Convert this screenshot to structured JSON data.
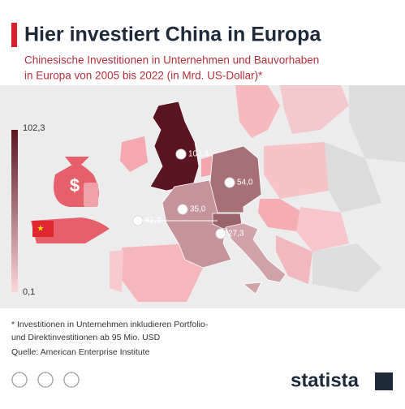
{
  "header": {
    "title": "Hier investiert China in Europa",
    "subtitle": [
      "Chinesische Investitionen in Unternehmen und Bauvorhaben",
      "in Europa von 2005 bis 2022 (in Mrd. US-Dollar)*"
    ]
  },
  "scale": {
    "ticks": [
      {
        "value": 102.3,
        "label": "102,3"
      },
      {
        "value": 0.1,
        "label": "0,1"
      }
    ],
    "color_low": "#fbd6d9",
    "color_high": "#5b1520"
  },
  "markers": {
    "values": [
      102.3,
      54.0,
      35.0,
      61.2,
      27.3
    ],
    "value_labels": [
      "102,3",
      "54,0",
      "35,0",
      "61,2",
      "27,3"
    ]
  },
  "footnote": [
    "* Investitionen in Unternehmen inkludieren Portfolio-",
    "  und Direktinvestitionen ab 95 Mio. USD"
  ],
  "source": "Quelle: American Enterprise Institute",
  "brand": "statista"
}
